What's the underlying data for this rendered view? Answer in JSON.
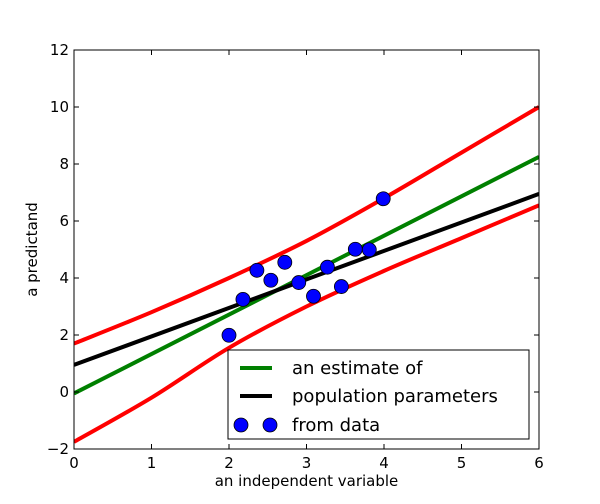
{
  "chart_data": {
    "type": "line",
    "title": "",
    "xlabel": "an independent variable",
    "ylabel": "a predictand",
    "xlim": [
      0,
      6
    ],
    "ylim": [
      -2,
      12
    ],
    "xticks": [
      0,
      1,
      2,
      3,
      4,
      5,
      6
    ],
    "yticks": [
      -2,
      0,
      2,
      4,
      6,
      8,
      10,
      12
    ],
    "grid": false,
    "legend_position": "lower-right",
    "legend": [
      {
        "label": "an estimate of",
        "kind": "line",
        "color": "#008000"
      },
      {
        "label": "population parameters",
        "kind": "line",
        "color": "#000000"
      },
      {
        "label": "from data",
        "kind": "marker",
        "color": "#0000ff"
      }
    ],
    "series": [
      {
        "kind": "line",
        "color": "#008000",
        "x": [
          0,
          6
        ],
        "y": [
          -0.05,
          8.25
        ]
      },
      {
        "kind": "line",
        "color": "#000000",
        "x": [
          0,
          6
        ],
        "y": [
          0.95,
          6.95
        ]
      },
      {
        "kind": "band-upper",
        "color": "#ff0000",
        "x": [
          0,
          1,
          2,
          3,
          4,
          5,
          6
        ],
        "y": [
          1.7,
          2.8,
          4.0,
          5.3,
          6.8,
          8.4,
          10.0
        ]
      },
      {
        "kind": "band-lower",
        "color": "#ff0000",
        "x": [
          0,
          1,
          2,
          3,
          4,
          5,
          6
        ],
        "y": [
          -1.75,
          -0.2,
          1.55,
          3.0,
          4.25,
          5.4,
          6.55
        ]
      },
      {
        "kind": "scatter",
        "color": "#0000ff",
        "x": [
          2.0,
          2.18,
          2.36,
          2.54,
          2.72,
          2.9,
          3.09,
          3.27,
          3.45,
          3.63,
          3.81,
          3.99
        ],
        "y": [
          1.99,
          3.25,
          4.27,
          3.92,
          4.55,
          3.84,
          3.36,
          4.38,
          3.7,
          5.01,
          4.99,
          6.78
        ]
      }
    ]
  }
}
